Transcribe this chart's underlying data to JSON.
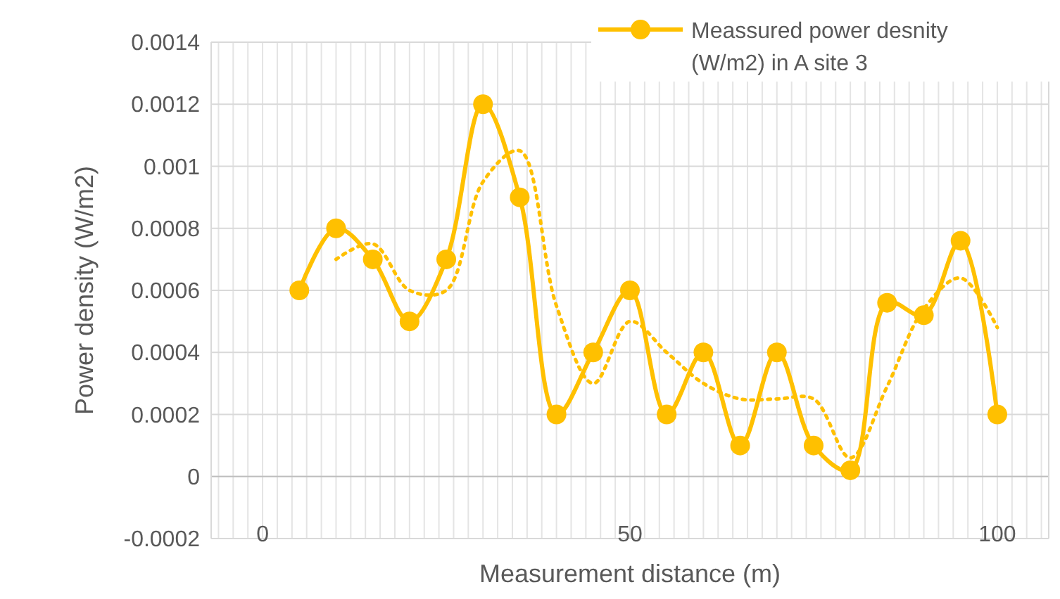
{
  "chart_data": {
    "type": "line",
    "xlabel": "Measurement distance (m)",
    "ylabel": "Power density (W/m2)",
    "xlim": [
      -7,
      107
    ],
    "xticks": [
      0,
      50,
      100
    ],
    "ylim": [
      -0.0002,
      0.0014
    ],
    "yticks": [
      -0.0002,
      0,
      0.0002,
      0.0004,
      0.0006,
      0.0008,
      0.001,
      0.0012,
      0.0014
    ],
    "grid": true,
    "legend": "top right",
    "series": [
      {
        "name": "Meassured power desnity (W/m2) in A site 3",
        "color": "#ffc000",
        "marker": "circle",
        "line_style": "solid",
        "x": [
          5,
          10,
          15,
          20,
          25,
          30,
          35,
          40,
          45,
          50,
          55,
          60,
          65,
          70,
          75,
          80,
          85,
          90,
          95,
          100
        ],
        "values": [
          0.0006,
          0.0008,
          0.0007,
          0.0005,
          0.0007,
          0.0012,
          0.0009,
          0.0002,
          0.0004,
          0.0006,
          0.0002,
          0.0004,
          0.0001,
          0.0004,
          0.0001,
          2e-05,
          0.00056,
          0.00052,
          0.00076,
          0.0002
        ]
      },
      {
        "type": "line",
        "color": "#ffc000",
        "marker": "none",
        "line_style": "dotted",
        "x": [
          10,
          15,
          20,
          25,
          30,
          35,
          40,
          45,
          50,
          55,
          60,
          65,
          70,
          75,
          80,
          85,
          90,
          95,
          100
        ],
        "values": [
          0.0007,
          0.00075,
          0.0006,
          0.0006,
          0.00095,
          0.00105,
          0.00055,
          0.0003,
          0.0005,
          0.0004,
          0.0003,
          0.00025,
          0.00025,
          0.00025,
          6e-05,
          0.00029,
          0.00054,
          0.00064,
          0.00048
        ]
      }
    ]
  }
}
